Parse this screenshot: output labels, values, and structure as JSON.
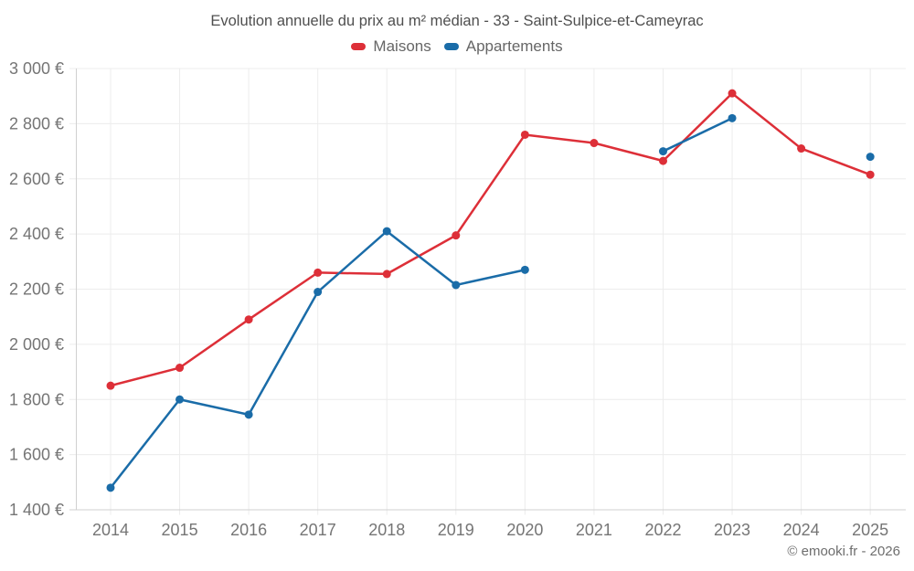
{
  "watermark": "© emooki.fr - 2026",
  "colors": {
    "background": "#ffffff",
    "grid": "#ececec",
    "axis": "#d0d0d0",
    "tick_label": "#757575",
    "title_text": "#4f4f4f",
    "legend_text": "#666666",
    "watermark_text": "#6e6e6e",
    "maisons": "#dd2f38",
    "appartements": "#1a6ca8"
  },
  "chart_data": {
    "type": "line",
    "title": "Evolution annuelle du prix au m² médian - 33 - Saint-Sulpice-et-Cameyrac",
    "categories": [
      "2014",
      "2015",
      "2016",
      "2017",
      "2018",
      "2019",
      "2020",
      "2021",
      "2022",
      "2023",
      "2024",
      "2025"
    ],
    "series": [
      {
        "name": "Maisons",
        "color": "#dd2f38",
        "values": [
          1850,
          1915,
          2090,
          2260,
          2255,
          2395,
          2760,
          2730,
          2665,
          2910,
          2710,
          2615
        ]
      },
      {
        "name": "Appartements",
        "color": "#1a6ca8",
        "values": [
          1480,
          1800,
          1745,
          2190,
          2410,
          2215,
          2270,
          null,
          2700,
          2820,
          null,
          2680
        ]
      }
    ],
    "xlabel": "",
    "ylabel": "",
    "ylim": [
      1400,
      3000
    ],
    "ytick_step": 200,
    "ytick_labels": [
      "1 400 €",
      "1 600 €",
      "1 800 €",
      "2 000 €",
      "2 200 €",
      "2 400 €",
      "2 600 €",
      "2 800 €",
      "3 000 €"
    ],
    "grid": true,
    "legend_position": "top",
    "marker_radius": 4.5,
    "line_width": 2.5
  }
}
